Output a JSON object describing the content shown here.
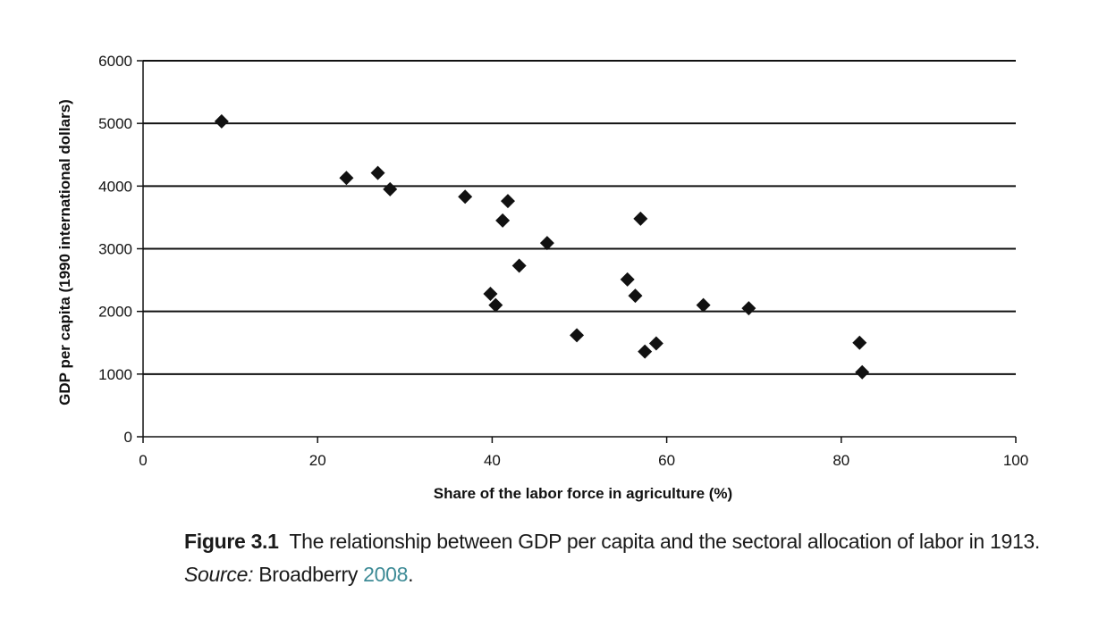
{
  "chart_data": {
    "type": "scatter",
    "xlabel": "Share of the labor force in agriculture (%)",
    "ylabel": "GDP per capita (1990 international dollars)",
    "xlim": [
      0,
      100
    ],
    "ylim": [
      0,
      6000
    ],
    "xticks": [
      0,
      20,
      40,
      60,
      80,
      100
    ],
    "yticks": [
      0,
      1000,
      2000,
      3000,
      4000,
      5000,
      6000
    ],
    "grid": "horizontal",
    "marker": "diamond",
    "color": "#111111",
    "points": [
      {
        "x": 9,
        "y": 5032
      },
      {
        "x": 23.3,
        "y": 4130
      },
      {
        "x": 26.9,
        "y": 4210
      },
      {
        "x": 28.3,
        "y": 3950
      },
      {
        "x": 36.9,
        "y": 3830
      },
      {
        "x": 39.8,
        "y": 2280
      },
      {
        "x": 40.4,
        "y": 2100
      },
      {
        "x": 41.2,
        "y": 3450
      },
      {
        "x": 41.8,
        "y": 3760
      },
      {
        "x": 43.1,
        "y": 2730
      },
      {
        "x": 46.3,
        "y": 3090
      },
      {
        "x": 49.7,
        "y": 1620
      },
      {
        "x": 55.5,
        "y": 2510
      },
      {
        "x": 56.4,
        "y": 2250
      },
      {
        "x": 57,
        "y": 3480
      },
      {
        "x": 57.5,
        "y": 1360
      },
      {
        "x": 58.8,
        "y": 1490
      },
      {
        "x": 64.2,
        "y": 2100
      },
      {
        "x": 69.4,
        "y": 2050
      },
      {
        "x": 82.1,
        "y": 1500
      },
      {
        "x": 82.4,
        "y": 1030
      }
    ]
  },
  "caption": {
    "label": "Figure 3.1",
    "text": "The relationship between GDP per capita and the sectoral allocation of labor in 1913.",
    "source_label": "Source:",
    "source_text": "Broadberry",
    "source_year": "2008",
    "end": "."
  }
}
